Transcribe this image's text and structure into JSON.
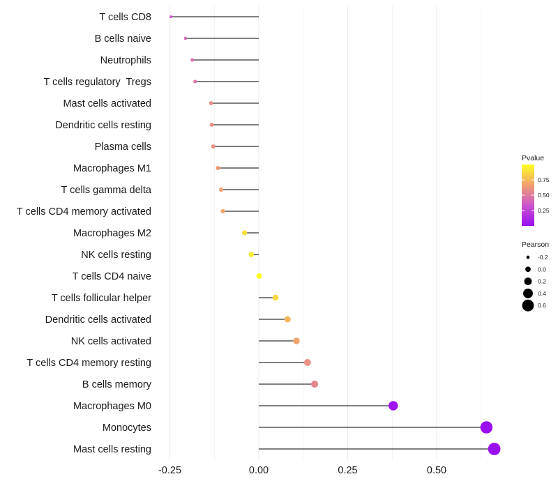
{
  "chart_data": {
    "type": "lollipop",
    "xlim": [
      -0.25,
      0.7
    ],
    "x_ticks": [
      -0.25,
      0.0,
      0.25,
      0.5
    ],
    "x_tick_labels": [
      "-0.25",
      "0.00",
      "0.25",
      "0.50"
    ],
    "grid": true,
    "categories": [
      "T cells CD8",
      "B cells naive",
      "Neutrophils",
      "T cells regulatory  Tregs",
      "Mast cells activated",
      "Dendritic cells resting",
      "Plasma cells",
      "Macrophages M1",
      "T cells gamma delta",
      "T cells CD4 memory activated",
      "Macrophages M2",
      "NK cells resting",
      "T cells CD4 naive",
      "T cells follicular helper",
      "Dendritic cells activated",
      "NK cells activated",
      "T cells CD4 memory resting",
      "B cells memory",
      "Macrophages M0",
      "Monocytes",
      "Mast cells resting"
    ],
    "pearson": [
      -0.247,
      -0.206,
      -0.187,
      -0.179,
      -0.134,
      -0.132,
      -0.128,
      -0.115,
      -0.106,
      -0.101,
      -0.04,
      -0.021,
      0.001,
      0.047,
      0.081,
      0.106,
      0.137,
      0.157,
      0.378,
      0.64,
      0.662
    ],
    "pvalue": [
      0.33,
      0.42,
      0.45,
      0.47,
      0.58,
      0.59,
      0.6,
      0.64,
      0.67,
      0.69,
      0.88,
      0.94,
      1.0,
      0.86,
      0.75,
      0.68,
      0.6,
      0.55,
      0.03,
      0.002,
      0.001
    ],
    "legend_pvalue": {
      "title": "Pvalue",
      "ticks": [
        0.25,
        0.5,
        0.75
      ],
      "tick_labels": [
        "0.25",
        "0.50",
        "0.75"
      ],
      "range": [
        0.0,
        1.0
      ],
      "colors": [
        "#9a0ff0",
        "#cc55cc",
        "#f0a070",
        "#ffff20"
      ]
    },
    "legend_pearson": {
      "title": "Pearson",
      "values": [
        -0.2,
        0.0,
        0.2,
        0.4,
        0.6
      ],
      "labels": [
        "-0.2",
        "0.0",
        "0.2",
        "0.4",
        "0.6"
      ]
    },
    "colors": {
      "stem": "#333333",
      "grid": "#ebebeb"
    }
  }
}
